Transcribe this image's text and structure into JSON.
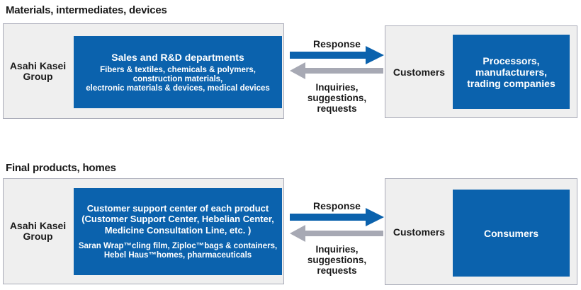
{
  "colors": {
    "blue": "#0b62ad",
    "arrow_gray": "#a7a9b4",
    "panel_bg": "#efefef",
    "panel_border": "#a9abb8",
    "text": "#1a1a1a"
  },
  "sections": [
    {
      "heading": "Materials, intermediates, devices",
      "left_panel": {
        "group_label": "Asahi Kasei Group",
        "title": "Sales and R&D departments",
        "lines": [
          "Fibers & textiles, chemicals & polymers,",
          "construction materials,",
          "electronic materials & devices, medical devices"
        ]
      },
      "flow": {
        "response": "Response",
        "inquiries": [
          "Inquiries,",
          "suggestions,",
          "requests"
        ]
      },
      "right_panel": {
        "customers_label": "Customers",
        "box_lines": [
          "Processors,",
          "manufacturers,",
          "trading companies"
        ]
      }
    },
    {
      "heading": "Final products, homes",
      "left_panel": {
        "group_label": "Asahi Kasei Group",
        "title": "Customer support center of each product",
        "subtitle_lines": [
          "(Customer Support Center, Hebelian Center,",
          "Medicine Consultation Line, etc. )"
        ],
        "lines": [
          "Saran Wrap™cling film, Ziploc™bags & containers,",
          "Hebel Haus™homes, pharmaceuticals"
        ]
      },
      "flow": {
        "response": "Response",
        "inquiries": [
          "Inquiries,",
          "suggestions,",
          "requests"
        ]
      },
      "right_panel": {
        "customers_label": "Customers",
        "box_lines": [
          "Consumers"
        ]
      }
    }
  ]
}
